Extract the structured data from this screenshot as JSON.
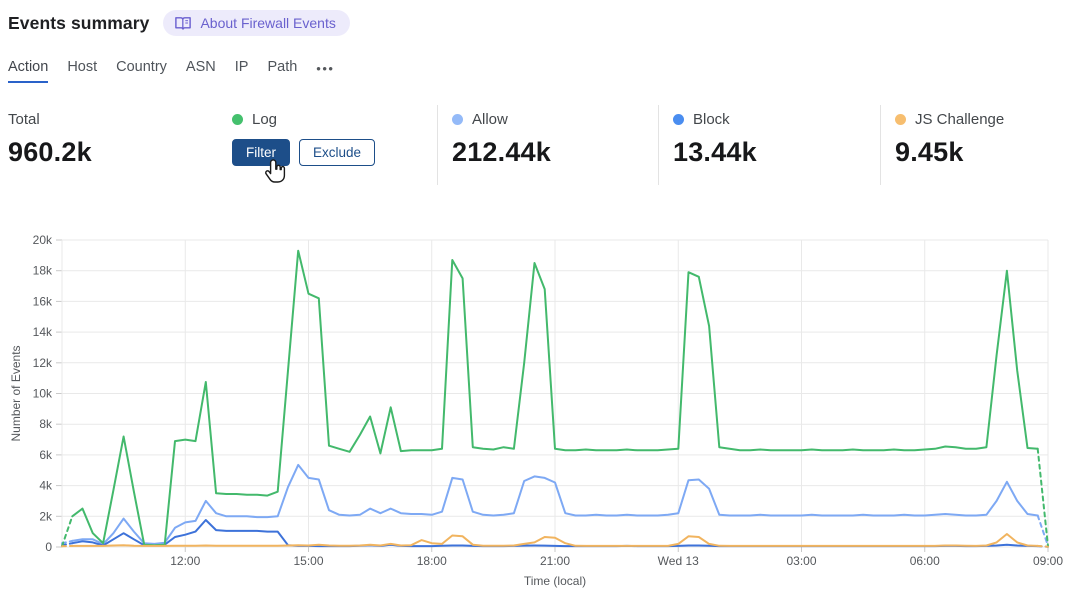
{
  "header": {
    "title": "Events summary",
    "about_badge_label": "About Firewall Events",
    "badge_bg": "#edebfb",
    "badge_text_color": "#6a61ce"
  },
  "tabs": {
    "items": [
      "Action",
      "Host",
      "Country",
      "ASN",
      "IP",
      "Path"
    ],
    "active": "Action",
    "more_label": "•••"
  },
  "stats": {
    "total": {
      "label": "Total",
      "value": "960.2k"
    },
    "cards": [
      {
        "label": "Log",
        "dot_color": "#44c06d",
        "filter_label": "Filter",
        "exclude_label": "Exclude"
      },
      {
        "label": "Allow",
        "value": "212.44k",
        "dot_color": "#94baf8"
      },
      {
        "label": "Block",
        "value": "13.44k",
        "dot_color": "#4a8df0"
      },
      {
        "label": "JS Challenge",
        "value": "9.45k",
        "dot_color": "#f7be6f"
      }
    ],
    "button_accent": "#1d4e89"
  },
  "chart_data": {
    "type": "line",
    "xlabel": "Time (local)",
    "ylabel": "Number of Events",
    "ylim": [
      0,
      20000
    ],
    "ytick_step": 2000,
    "grid": true,
    "interval_minutes": 15,
    "dashed_edge_segments": true,
    "x_ticks": [
      {
        "i": 12,
        "label": "12:00"
      },
      {
        "i": 24,
        "label": "15:00"
      },
      {
        "i": 36,
        "label": "18:00"
      },
      {
        "i": 48,
        "label": "21:00"
      },
      {
        "i": 60,
        "label": "Wed 13"
      },
      {
        "i": 72,
        "label": "03:00"
      },
      {
        "i": 84,
        "label": "06:00"
      },
      {
        "i": 96,
        "label": "09:00"
      }
    ],
    "series": [
      {
        "name": "Allow",
        "color": "#7ea9f4",
        "values": [
          250,
          400,
          500,
          500,
          180,
          900,
          1850,
          1000,
          240,
          200,
          280,
          1250,
          1600,
          1700,
          3000,
          2200,
          2000,
          2000,
          2000,
          1950,
          1950,
          2000,
          3900,
          5350,
          4500,
          4400,
          2400,
          2100,
          2050,
          2100,
          2500,
          2200,
          2500,
          2200,
          2150,
          2150,
          2100,
          2300,
          4500,
          4400,
          2300,
          2100,
          2050,
          2100,
          2200,
          4300,
          4600,
          4500,
          4200,
          2200,
          2050,
          2050,
          2100,
          2050,
          2050,
          2100,
          2050,
          2050,
          2050,
          2100,
          2200,
          4350,
          4400,
          3800,
          2100,
          2050,
          2050,
          2050,
          2100,
          2050,
          2050,
          2050,
          2050,
          2100,
          2050,
          2050,
          2050,
          2050,
          2100,
          2050,
          2050,
          2050,
          2100,
          2050,
          2050,
          2100,
          2150,
          2100,
          2050,
          2050,
          2100,
          3000,
          4250,
          3000,
          2150,
          2050,
          80
        ]
      },
      {
        "name": "Block",
        "color": "#3d72d9",
        "values": [
          120,
          250,
          370,
          300,
          100,
          500,
          900,
          500,
          120,
          100,
          150,
          650,
          800,
          1000,
          1760,
          1100,
          1050,
          1050,
          1050,
          1050,
          1000,
          1000,
          120,
          70,
          70,
          60,
          60,
          60,
          60,
          80,
          120,
          70,
          150,
          70,
          60,
          60,
          60,
          80,
          100,
          100,
          70,
          60,
          60,
          60,
          70,
          90,
          100,
          90,
          70,
          60,
          60,
          60,
          60,
          60,
          60,
          70,
          60,
          60,
          60,
          60,
          70,
          100,
          100,
          80,
          60,
          60,
          60,
          60,
          60,
          60,
          60,
          60,
          60,
          60,
          60,
          60,
          60,
          60,
          60,
          60,
          60,
          60,
          60,
          60,
          60,
          60,
          70,
          70,
          60,
          60,
          70,
          100,
          150,
          100,
          70,
          60,
          20
        ]
      },
      {
        "name": "Log",
        "color": "#43b96c",
        "values": [
          50,
          2000,
          2500,
          900,
          250,
          3700,
          7200,
          3600,
          150,
          120,
          150,
          6900,
          7000,
          6900,
          10750,
          3500,
          3450,
          3450,
          3400,
          3400,
          3350,
          3600,
          11500,
          19300,
          16500,
          16200,
          6600,
          6400,
          6200,
          7300,
          8500,
          6100,
          9100,
          6250,
          6300,
          6300,
          6300,
          6400,
          18700,
          17500,
          6500,
          6400,
          6350,
          6500,
          6400,
          12000,
          18500,
          16800,
          6400,
          6300,
          6300,
          6350,
          6300,
          6300,
          6300,
          6350,
          6300,
          6300,
          6300,
          6350,
          6400,
          17900,
          17600,
          14400,
          6500,
          6400,
          6300,
          6300,
          6350,
          6300,
          6300,
          6300,
          6300,
          6350,
          6300,
          6300,
          6300,
          6350,
          6300,
          6300,
          6300,
          6350,
          6300,
          6300,
          6350,
          6400,
          6550,
          6500,
          6400,
          6400,
          6500,
          12500,
          18000,
          11500,
          6450,
          6400,
          50
        ]
      },
      {
        "name": "JS Challenge",
        "color": "#f1b45f",
        "values": [
          50,
          70,
          70,
          70,
          70,
          100,
          120,
          80,
          70,
          70,
          70,
          80,
          80,
          80,
          100,
          80,
          80,
          80,
          80,
          80,
          80,
          80,
          100,
          120,
          100,
          150,
          100,
          80,
          80,
          100,
          150,
          100,
          200,
          100,
          120,
          450,
          250,
          200,
          750,
          700,
          150,
          80,
          80,
          80,
          100,
          200,
          300,
          650,
          600,
          250,
          80,
          70,
          70,
          70,
          70,
          70,
          70,
          70,
          70,
          70,
          200,
          700,
          650,
          200,
          80,
          70,
          70,
          70,
          70,
          70,
          70,
          70,
          70,
          70,
          70,
          70,
          70,
          70,
          70,
          70,
          70,
          70,
          70,
          70,
          70,
          70,
          100,
          100,
          80,
          70,
          100,
          300,
          850,
          300,
          100,
          70,
          20
        ]
      }
    ]
  }
}
